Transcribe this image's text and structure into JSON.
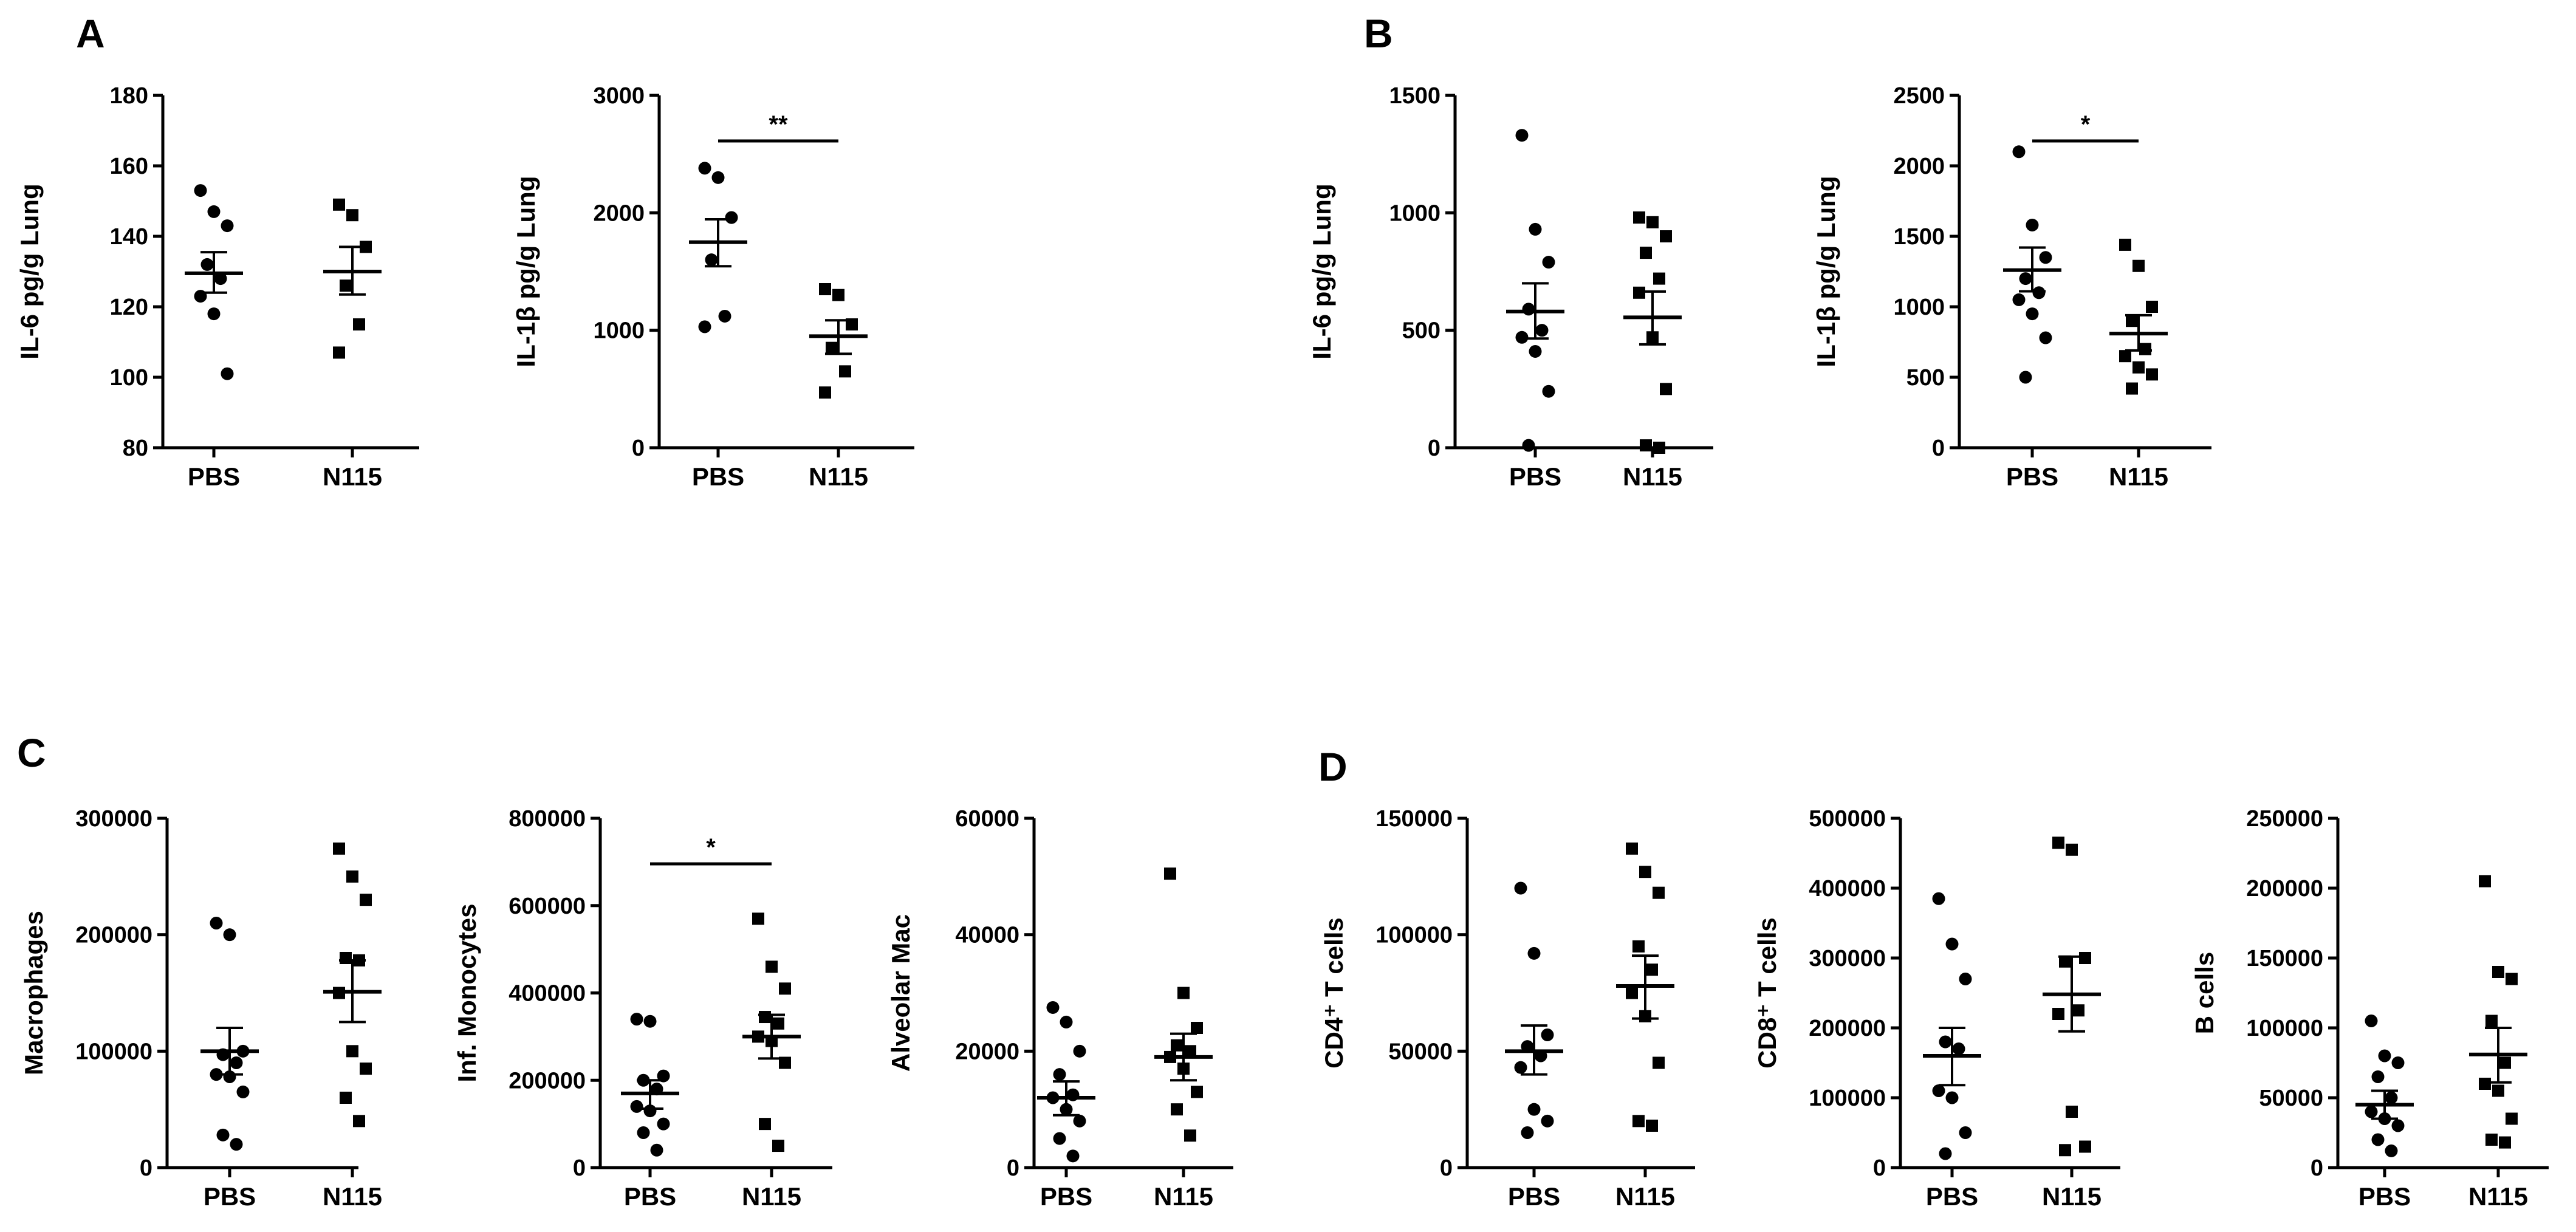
{
  "panel_labels": [
    "A",
    "B",
    "C",
    "D"
  ],
  "chart_data": [
    {
      "type": "scatter",
      "panel": "A",
      "title": "",
      "ylabel": "IL-6 pg/g Lung",
      "ylim": [
        80,
        180
      ],
      "yticks": [
        80,
        100,
        120,
        140,
        160,
        180
      ],
      "ytick_labels": [
        "80",
        "100",
        "120",
        "140",
        "160",
        "180"
      ],
      "categories": [
        "PBS",
        "N115"
      ],
      "markers": [
        "circle",
        "square"
      ],
      "groups": [
        {
          "name": "PBS",
          "values": [
            153,
            147,
            143,
            132,
            128,
            123,
            118,
            101
          ],
          "mean": 129.5,
          "sem_range": [
            124,
            135.5
          ]
        },
        {
          "name": "N115",
          "values": [
            149,
            146,
            137,
            126,
            115,
            107
          ],
          "mean": 130,
          "sem_range": [
            123.5,
            137
          ]
        }
      ],
      "significance": null
    },
    {
      "type": "scatter",
      "panel": "A",
      "title": "",
      "ylabel": "IL-1β pg/g Lung",
      "ylim": [
        0,
        3000
      ],
      "yticks": [
        0,
        1000,
        2000,
        3000
      ],
      "ytick_labels": [
        "0",
        "1000",
        "2000",
        "3000"
      ],
      "categories": [
        "PBS",
        "N115"
      ],
      "markers": [
        "circle",
        "square"
      ],
      "groups": [
        {
          "name": "PBS",
          "values": [
            2380,
            2300,
            1960,
            1600,
            1120,
            1030
          ],
          "mean": 1750,
          "sem_range": [
            1545,
            1945
          ]
        },
        {
          "name": "N115",
          "values": [
            1350,
            1300,
            1050,
            850,
            650,
            470
          ],
          "mean": 950,
          "sem_range": [
            800,
            1085
          ]
        }
      ],
      "significance": "**"
    },
    {
      "type": "scatter",
      "panel": "B",
      "title": "",
      "ylabel": "IL-6 pg/g Lung",
      "ylim": [
        0,
        1500
      ],
      "yticks": [
        0,
        500,
        1000,
        1500
      ],
      "ytick_labels": [
        "0",
        "500",
        "1000",
        "1500"
      ],
      "categories": [
        "PBS",
        "N115"
      ],
      "markers": [
        "circle",
        "square"
      ],
      "groups": [
        {
          "name": "PBS",
          "values": [
            1330,
            930,
            790,
            590,
            500,
            470,
            410,
            240,
            10
          ],
          "mean": 580,
          "sem_range": [
            465,
            700
          ]
        },
        {
          "name": "N115",
          "values": [
            980,
            960,
            900,
            830,
            720,
            660,
            470,
            250,
            10,
            0
          ],
          "mean": 555,
          "sem_range": [
            440,
            665
          ]
        }
      ],
      "significance": null
    },
    {
      "type": "scatter",
      "panel": "B",
      "title": "",
      "ylabel": "IL-1β pg/g Lung",
      "ylim": [
        0,
        2500
      ],
      "yticks": [
        0,
        500,
        1000,
        1500,
        2000,
        2500
      ],
      "ytick_labels": [
        "0",
        "500",
        "1000",
        "1500",
        "2000",
        "2500"
      ],
      "categories": [
        "PBS",
        "N115"
      ],
      "markers": [
        "circle",
        "square"
      ],
      "groups": [
        {
          "name": "PBS",
          "values": [
            2100,
            1580,
            1350,
            1200,
            1100,
            1050,
            950,
            780,
            500
          ],
          "mean": 1260,
          "sem_range": [
            1110,
            1420
          ]
        },
        {
          "name": "N115",
          "values": [
            1440,
            1290,
            1000,
            900,
            700,
            650,
            570,
            520,
            420
          ],
          "mean": 810,
          "sem_range": [
            690,
            940
          ]
        }
      ],
      "significance": "*"
    },
    {
      "type": "scatter",
      "panel": "C",
      "title": "",
      "ylabel": "Macrophages",
      "ylim": [
        0,
        300000
      ],
      "yticks": [
        0,
        100000,
        200000,
        300000
      ],
      "ytick_labels": [
        "0",
        "100000",
        "200000",
        "300000"
      ],
      "categories": [
        "PBS",
        "N115"
      ],
      "markers": [
        "circle",
        "square"
      ],
      "groups": [
        {
          "name": "PBS",
          "values": [
            210000,
            200000,
            100000,
            97000,
            90000,
            80000,
            78000,
            65000,
            28000,
            20000
          ],
          "mean": 100000,
          "sem_range": [
            80000,
            120000
          ]
        },
        {
          "name": "N115",
          "values": [
            274000,
            250000,
            230000,
            180000,
            178000,
            150000,
            100000,
            85000,
            60000,
            40000
          ],
          "mean": 151000,
          "sem_range": [
            125000,
            178000
          ]
        }
      ],
      "significance": null
    },
    {
      "type": "scatter",
      "panel": "C",
      "title": "",
      "ylabel": "Inf. Monocytes",
      "ylim": [
        0,
        800000
      ],
      "yticks": [
        0,
        200000,
        400000,
        600000,
        800000
      ],
      "ytick_labels": [
        "0",
        "200000",
        "400000",
        "600000",
        "800000"
      ],
      "categories": [
        "PBS",
        "N115"
      ],
      "markers": [
        "circle",
        "square"
      ],
      "groups": [
        {
          "name": "PBS",
          "values": [
            340000,
            335000,
            210000,
            200000,
            180000,
            140000,
            130000,
            100000,
            80000,
            40000
          ],
          "mean": 170000,
          "sem_range": [
            135000,
            200000
          ]
        },
        {
          "name": "N115",
          "values": [
            570000,
            460000,
            410000,
            345000,
            330000,
            300000,
            290000,
            240000,
            100000,
            50000
          ],
          "mean": 300000,
          "sem_range": [
            250000,
            350000
          ]
        }
      ],
      "significance": "*"
    },
    {
      "type": "scatter",
      "panel": "C",
      "title": "",
      "ylabel": "Alveolar Mac",
      "ylim": [
        0,
        60000
      ],
      "yticks": [
        0,
        20000,
        40000,
        60000
      ],
      "ytick_labels": [
        "0",
        "20000",
        "40000",
        "60000"
      ],
      "categories": [
        "PBS",
        "N115"
      ],
      "markers": [
        "circle",
        "square"
      ],
      "groups": [
        {
          "name": "PBS",
          "values": [
            27500,
            25000,
            20000,
            16000,
            12500,
            12000,
            10000,
            8000,
            5000,
            2000
          ],
          "mean": 12000,
          "sem_range": [
            9000,
            14800
          ]
        },
        {
          "name": "N115",
          "values": [
            50500,
            30000,
            24000,
            21000,
            20000,
            19000,
            17000,
            13000,
            10000,
            5500
          ],
          "mean": 19000,
          "sem_range": [
            15000,
            23000
          ]
        }
      ],
      "significance": null
    },
    {
      "type": "scatter",
      "panel": "D",
      "title": "",
      "ylabel": "CD4⁺ T cells",
      "ylim": [
        0,
        150000
      ],
      "yticks": [
        0,
        50000,
        100000,
        150000
      ],
      "ytick_labels": [
        "0",
        "50000",
        "100000",
        "150000"
      ],
      "categories": [
        "PBS",
        "N115"
      ],
      "markers": [
        "circle",
        "square"
      ],
      "groups": [
        {
          "name": "PBS",
          "values": [
            120000,
            92000,
            57000,
            52000,
            48000,
            43000,
            25000,
            20000,
            15000
          ],
          "mean": 50000,
          "sem_range": [
            40000,
            61000
          ]
        },
        {
          "name": "N115",
          "values": [
            137000,
            127000,
            118000,
            95000,
            85000,
            75000,
            65000,
            45000,
            20000,
            18000
          ],
          "mean": 78000,
          "sem_range": [
            64000,
            91000
          ]
        }
      ],
      "significance": null
    },
    {
      "type": "scatter",
      "panel": "D",
      "title": "",
      "ylabel": "CD8⁺ T cells",
      "ylim": [
        0,
        500000
      ],
      "yticks": [
        0,
        100000,
        200000,
        300000,
        400000,
        500000
      ],
      "ytick_labels": [
        "0",
        "100000",
        "200000",
        "300000",
        "400000",
        "500000"
      ],
      "categories": [
        "PBS",
        "N115"
      ],
      "markers": [
        "circle",
        "square"
      ],
      "groups": [
        {
          "name": "PBS",
          "values": [
            385000,
            320000,
            270000,
            180000,
            170000,
            110000,
            100000,
            50000,
            20000
          ],
          "mean": 160000,
          "sem_range": [
            118000,
            200000
          ]
        },
        {
          "name": "N115",
          "values": [
            465000,
            455000,
            300000,
            295000,
            225000,
            220000,
            80000,
            30000,
            25000
          ],
          "mean": 248000,
          "sem_range": [
            195000,
            302000
          ]
        }
      ],
      "significance": null
    },
    {
      "type": "scatter",
      "panel": "D",
      "title": "",
      "ylabel": "B cells",
      "ylim": [
        0,
        250000
      ],
      "yticks": [
        0,
        50000,
        100000,
        150000,
        200000,
        250000
      ],
      "ytick_labels": [
        "0",
        "50000",
        "100000",
        "150000",
        "200000",
        "250000"
      ],
      "categories": [
        "PBS",
        "N115"
      ],
      "markers": [
        "circle",
        "square"
      ],
      "groups": [
        {
          "name": "PBS",
          "values": [
            105000,
            80000,
            75000,
            65000,
            50000,
            40000,
            35000,
            30000,
            20000,
            12000
          ],
          "mean": 45000,
          "sem_range": [
            35000,
            55000
          ]
        },
        {
          "name": "N115",
          "values": [
            205000,
            140000,
            135000,
            105000,
            75000,
            60000,
            55000,
            35000,
            20000,
            18000
          ],
          "mean": 81000,
          "sem_range": [
            61000,
            100000
          ]
        }
      ],
      "significance": null
    }
  ]
}
